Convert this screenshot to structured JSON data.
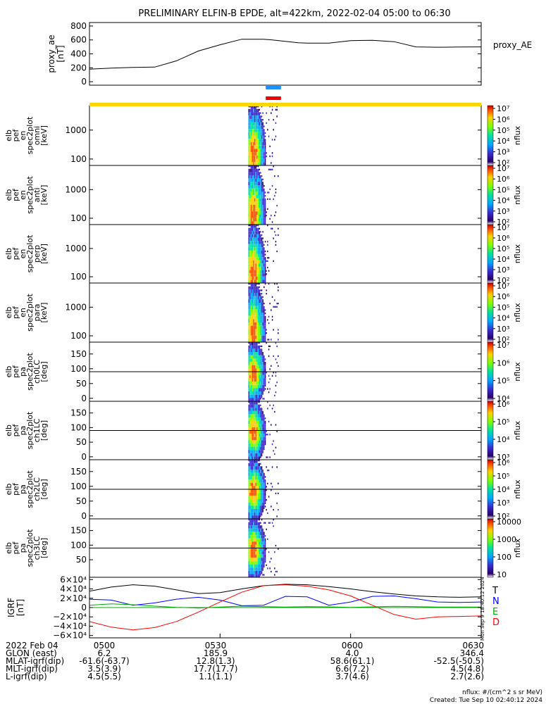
{
  "title": "PRELIMINARY ELFIN-B EPDE, alt=422km, 2022-02-04 05:00 to 06:30",
  "chart_data": [
    {
      "type": "line",
      "name": "proxy_ae",
      "ylabel": "proxy_ae",
      "yunit": "[nT]",
      "legend": "proxy_AE",
      "xlim": [
        0,
        90
      ],
      "ylim": [
        -50,
        850
      ],
      "yticks": [
        "0",
        "200",
        "400",
        "600",
        "800"
      ],
      "yticks_values": [
        0,
        200,
        400,
        600,
        800
      ],
      "x": [
        0,
        5,
        10,
        15,
        20,
        25,
        30,
        35,
        40,
        42,
        45,
        48,
        50,
        55,
        60,
        65,
        70,
        75,
        80,
        85,
        90
      ],
      "y": [
        180,
        195,
        205,
        210,
        300,
        440,
        530,
        610,
        610,
        600,
        580,
        560,
        555,
        555,
        590,
        595,
        575,
        500,
        495,
        498,
        500
      ]
    },
    {
      "type": "heatmap",
      "panel": "omni",
      "ylabel_lines": [
        "elb",
        "pef",
        "en",
        "spec2plot",
        "omni",
        "[keV]"
      ],
      "yscale": "log",
      "ylim": [
        60,
        7000
      ],
      "yticks": [
        "100",
        "1000"
      ],
      "yticks_values": [
        100,
        1000
      ],
      "colorbar_label": "nflux",
      "colorbar_ticks": [
        "10²",
        "10³",
        "10⁴",
        "10⁵",
        "10⁶",
        "10⁷"
      ],
      "colorbar_range": [
        100,
        10000000
      ]
    },
    {
      "type": "heatmap",
      "panel": "anti",
      "ylabel_lines": [
        "elb",
        "pef",
        "en",
        "spec2plot",
        "anti",
        "[keV]"
      ],
      "yscale": "log",
      "ylim": [
        60,
        7000
      ],
      "yticks": [
        "100",
        "1000"
      ],
      "yticks_values": [
        100,
        1000
      ],
      "colorbar_label": "nflux",
      "colorbar_ticks": [
        "10²",
        "10³",
        "10⁴",
        "10⁵",
        "10⁶",
        "10⁷"
      ],
      "colorbar_range": [
        100,
        10000000
      ]
    },
    {
      "type": "heatmap",
      "panel": "perp",
      "ylabel_lines": [
        "elb",
        "pef",
        "en",
        "spec2plot",
        "perp",
        "[keV]"
      ],
      "yscale": "log",
      "ylim": [
        60,
        7000
      ],
      "yticks": [
        "100",
        "1000"
      ],
      "yticks_values": [
        100,
        1000
      ],
      "colorbar_label": "nflux",
      "colorbar_ticks": [
        "10²",
        "10³",
        "10⁴",
        "10⁵",
        "10⁶",
        "10⁷"
      ],
      "colorbar_range": [
        100,
        10000000
      ]
    },
    {
      "type": "heatmap",
      "panel": "para",
      "ylabel_lines": [
        "elb",
        "pef",
        "en",
        "spec2plot",
        "para",
        "[keV]"
      ],
      "yscale": "log",
      "ylim": [
        60,
        7000
      ],
      "yticks": [
        "100",
        "1000"
      ],
      "yticks_values": [
        100,
        1000
      ],
      "colorbar_label": "nflux",
      "colorbar_ticks": [
        "10²",
        "10³",
        "10⁴",
        "10⁵",
        "10⁶",
        "10⁷"
      ],
      "colorbar_range": [
        100,
        10000000
      ]
    },
    {
      "type": "heatmap",
      "panel": "ch0LC",
      "ylabel_lines": [
        "elb",
        "pef",
        "pa",
        "spec2plot",
        "ch0LC",
        "[deg]"
      ],
      "yscale": "linear",
      "ylim": [
        -10,
        190
      ],
      "yticks": [
        "0",
        "50",
        "100",
        "150"
      ],
      "yticks_values": [
        0,
        50,
        100,
        150
      ],
      "colorbar_label": "nflux",
      "colorbar_ticks": [
        "10⁴",
        "10⁵",
        "10⁶",
        "10⁷"
      ],
      "colorbar_range": [
        1000,
        10000000
      ]
    },
    {
      "type": "heatmap",
      "panel": "ch1LC",
      "ylabel_lines": [
        "elb",
        "pef",
        "pa",
        "spec2plot",
        "ch1LC",
        "[deg]"
      ],
      "yscale": "linear",
      "ylim": [
        -10,
        190
      ],
      "yticks": [
        "0",
        "50",
        "100",
        "150"
      ],
      "yticks_values": [
        0,
        50,
        100,
        150
      ],
      "colorbar_label": "nflux",
      "colorbar_ticks": [
        "10³",
        "10⁴",
        "10⁵",
        "10⁶"
      ],
      "colorbar_range": [
        200,
        10000000
      ]
    },
    {
      "type": "heatmap",
      "panel": "ch2LC",
      "ylabel_lines": [
        "elb",
        "pef",
        "pa",
        "spec2plot",
        "ch2LC",
        "[deg]"
      ],
      "yscale": "linear",
      "ylim": [
        -10,
        190
      ],
      "yticks": [
        "0",
        "50",
        "100",
        "150"
      ],
      "yticks_values": [
        0,
        50,
        100,
        150
      ],
      "colorbar_label": "nflux",
      "colorbar_ticks": [
        "10²",
        "10³",
        "10⁴",
        "10⁵",
        "10⁶"
      ],
      "colorbar_range": [
        100,
        2000000
      ]
    },
    {
      "type": "heatmap",
      "panel": "ch3LC",
      "ylabel_lines": [
        "elb",
        "pef",
        "pa",
        "spec2plot",
        "ch3LC",
        "[deg]"
      ],
      "yscale": "linear",
      "ylim": [
        -10,
        190
      ],
      "yticks": [
        "50",
        "100",
        "150"
      ],
      "yticks_values": [
        50,
        100,
        150
      ],
      "colorbar_label": "nflux",
      "colorbar_ticks": [
        "10",
        "100",
        "1000",
        "10000"
      ],
      "colorbar_range": [
        10,
        40000
      ]
    },
    {
      "type": "line",
      "name": "IGRF",
      "ylabel": "IGRF",
      "yunit": "[nT]",
      "xlim": [
        0,
        90
      ],
      "ylim": [
        -65000,
        65000
      ],
      "yticks": [
        "6×10⁴",
        "4×10⁴",
        "2×10⁴",
        "0",
        "−2×10⁴",
        "−4×10⁴",
        "−6×10⁴"
      ],
      "yticks_values": [
        60000,
        40000,
        20000,
        0,
        -20000,
        -40000,
        -60000
      ],
      "legend": [
        "T",
        "N",
        "E",
        "D"
      ],
      "series": [
        {
          "name": "T",
          "color": "#000000",
          "x": [
            0,
            5,
            10,
            15,
            20,
            25,
            30,
            35,
            40,
            45,
            50,
            55,
            60,
            65,
            70,
            75,
            80,
            85,
            90
          ],
          "y": [
            35000,
            44000,
            49000,
            46000,
            38000,
            30000,
            32000,
            40000,
            47000,
            50000,
            49000,
            45000,
            40000,
            34000,
            29000,
            25000,
            23000,
            22000,
            23000
          ]
        },
        {
          "name": "N",
          "color": "#0000ff",
          "x": [
            0,
            5,
            10,
            15,
            20,
            25,
            30,
            35,
            40,
            45,
            50,
            55,
            60,
            65,
            70,
            75,
            80,
            85,
            90
          ],
          "y": [
            18000,
            16000,
            5000,
            10000,
            18000,
            22000,
            16000,
            4000,
            5000,
            24000,
            23000,
            5000,
            12000,
            24000,
            25000,
            19000,
            12000,
            11000,
            12000
          ]
        },
        {
          "name": "E",
          "color": "#00aa00",
          "x": [
            0,
            5,
            10,
            15,
            20,
            25,
            30,
            35,
            40,
            45,
            50,
            55,
            60,
            65,
            70,
            75,
            80,
            85,
            90
          ],
          "y": [
            5000,
            8000,
            6000,
            3000,
            500,
            -1000,
            1000,
            3000,
            2000,
            1000,
            2000,
            1500,
            500,
            1500,
            2500,
            2000,
            1000,
            1000,
            1000
          ]
        },
        {
          "name": "D",
          "color": "#ff0000",
          "x": [
            0,
            5,
            10,
            15,
            20,
            25,
            30,
            35,
            40,
            45,
            50,
            55,
            60,
            65,
            70,
            75,
            80,
            85,
            90
          ],
          "y": [
            -30000,
            -42000,
            -48000,
            -43000,
            -30000,
            -10000,
            12000,
            33000,
            47000,
            49000,
            46000,
            38000,
            25000,
            5000,
            -15000,
            -25000,
            -20000,
            -19000,
            -18000
          ]
        }
      ]
    }
  ],
  "overlay": {
    "mark_colors": [
      "#1e90ff",
      "#ee0000"
    ],
    "bar_color": "#ffd700",
    "side_label": "Mon Sep 9 18:40:12 2024"
  },
  "footer": {
    "rows": [
      [
        "2022 Feb 04",
        "0500",
        "0530",
        "0600",
        "0630"
      ],
      [
        "GLON (east)",
        "6.2",
        "185.9",
        "4.0",
        "346.4"
      ],
      [
        "MLAT-igrf(dip)",
        "-61.6(-63.7)",
        "12.8(1.3)",
        "58.6(61.1)",
        "-52.5(-50.5)"
      ],
      [
        "MLT-igrf(dip)",
        "3.5(3.9)",
        "17.7(17.7)",
        "6.6(7.2)",
        "4.5(4.8)"
      ],
      [
        "L-igrf(dip)",
        "4.5(5.5)",
        "1.1(1.1)",
        "3.7(4.6)",
        "2.7(2.6)"
      ]
    ],
    "units": "nflux: #/(cm^2 s sr MeV)",
    "created": "Created: Tue Sep 10 02:40:12 2024"
  }
}
